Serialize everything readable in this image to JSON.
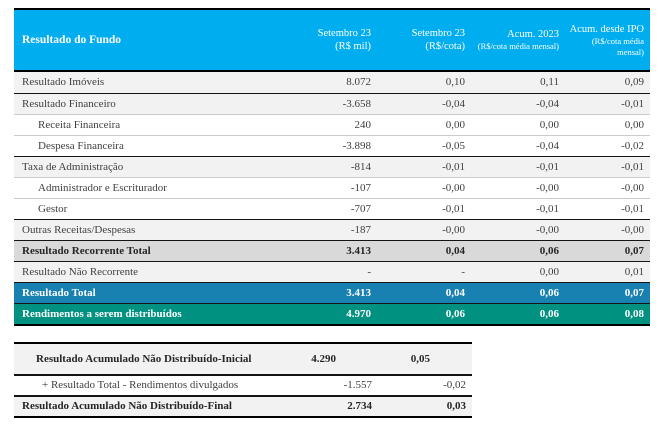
{
  "colors": {
    "header_bg": "#00AEEF",
    "total_row_blue": "#1981B1",
    "total_row_green": "#009180",
    "category_row_gray": "#F2F2F2",
    "recurrent_total_gray": "#D9D9D9",
    "body_text": "#3F3F3F",
    "header_text": "#FFFFFF"
  },
  "main_table": {
    "header": {
      "title": "Resultado do Fundo",
      "columns": [
        {
          "title": "Setembro 23",
          "sub": "(R$ mil)",
          "small_sub": false
        },
        {
          "title": "Setembro 23",
          "sub": "(R$/cota)",
          "small_sub": false
        },
        {
          "title": "Acum. 2023",
          "sub": "(R$/cota média mensal)",
          "small_sub": true
        },
        {
          "title": "Acum. desde IPO",
          "sub": "(R$/cota média mensal)",
          "small_sub": true
        }
      ]
    },
    "rows": [
      {
        "label": "Resultado Imóveis",
        "values": [
          "8.072",
          "0,10",
          "0,11",
          "0,09"
        ],
        "style": "cat",
        "indent": false,
        "sep": "none"
      },
      {
        "label": "Resultado Financeiro",
        "values": [
          "-3.658",
          "-0,04",
          "-0,04",
          "-0,01"
        ],
        "style": "cat",
        "indent": false,
        "sep": "dark"
      },
      {
        "label": "Receita Financeira",
        "values": [
          "240",
          "0,00",
          "0,00",
          "0,00"
        ],
        "style": "sub",
        "indent": true,
        "sep": "light"
      },
      {
        "label": "Despesa Financeira",
        "values": [
          "-3.898",
          "-0,05",
          "-0,04",
          "-0,02"
        ],
        "style": "sub",
        "indent": true,
        "sep": "light"
      },
      {
        "label": "Taxa de Administração",
        "values": [
          "-814",
          "-0,01",
          "-0,01",
          "-0,01"
        ],
        "style": "cat",
        "indent": false,
        "sep": "dark"
      },
      {
        "label": "Administrador e Escriturador",
        "values": [
          "-107",
          "-0,00",
          "-0,00",
          "-0,00"
        ],
        "style": "sub",
        "indent": true,
        "sep": "light"
      },
      {
        "label": "Gestor",
        "values": [
          "-707",
          "-0,01",
          "-0,01",
          "-0,01"
        ],
        "style": "sub",
        "indent": true,
        "sep": "light"
      },
      {
        "label": "Outras Receitas/Despesas",
        "values": [
          "-187",
          "-0,00",
          "-0,00",
          "-0,00"
        ],
        "style": "cat",
        "indent": false,
        "sep": "dark"
      },
      {
        "label": "Resultado Recorrente Total",
        "values": [
          "3.413",
          "0,04",
          "0,06",
          "0,07"
        ],
        "style": "total-gray",
        "indent": false,
        "sep": "dark"
      },
      {
        "label": "Resultado Não Recorrente",
        "values": [
          "-",
          "-",
          "0,00",
          "0,01"
        ],
        "style": "cat",
        "indent": false,
        "sep": "dark"
      },
      {
        "label": "Resultado Total",
        "values": [
          "3.413",
          "0,04",
          "0,06",
          "0,07"
        ],
        "style": "total-blue",
        "indent": false,
        "sep": "dark"
      },
      {
        "label": "Rendimentos a serem distribuídos",
        "values": [
          "4.970",
          "0,06",
          "0,06",
          "0,08"
        ],
        "style": "total-green",
        "indent": false,
        "sep": "dark"
      }
    ]
  },
  "secondary_table": {
    "rows": [
      {
        "label": "Resultado Acumulado Não Distribuído-Inicial",
        "values": [
          "4.290",
          "0,05"
        ],
        "style": "total-gray2",
        "indent": false,
        "sep": "none",
        "wrap": true
      },
      {
        "label": "+ Resultado Total - Rendimentos divulgados",
        "values": [
          "-1.557",
          "-0,02"
        ],
        "style": "sub",
        "indent": true,
        "sep": "dark",
        "wrap": false
      },
      {
        "label": "Resultado Acumulado Não Distribuído-Final",
        "values": [
          "2.734",
          "0,03"
        ],
        "style": "total-gray2",
        "indent": false,
        "sep": "dark",
        "wrap": false
      }
    ]
  }
}
